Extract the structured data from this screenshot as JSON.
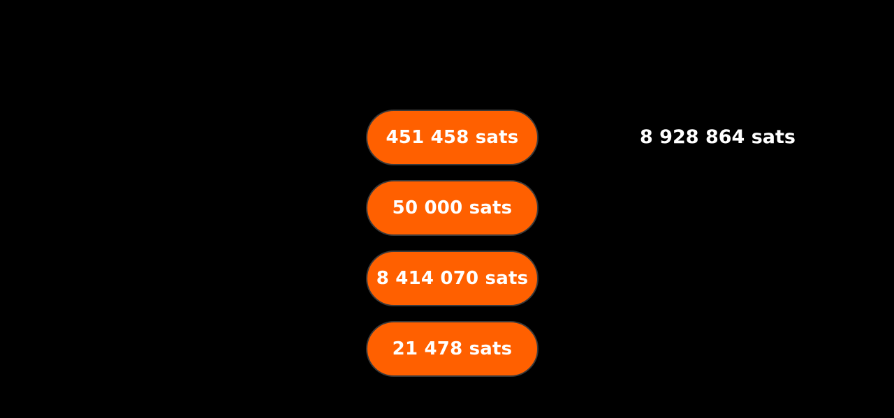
{
  "inputs": [
    {
      "label": "451 458 sats",
      "value": 451458,
      "unit": "sats"
    },
    {
      "label": "50 000 sats",
      "value": 50000,
      "unit": "sats"
    },
    {
      "label": "8 414 070 sats",
      "value": 8414070,
      "unit": "sats"
    },
    {
      "label": "21 478 sats",
      "value": 21478,
      "unit": "sats"
    }
  ],
  "total": {
    "label": "8 928 864 sats",
    "value": 8928864,
    "unit": "sats"
  },
  "colors": {
    "background": "#000000",
    "pill_fill": "#ff6000",
    "text": "#ffffff"
  }
}
